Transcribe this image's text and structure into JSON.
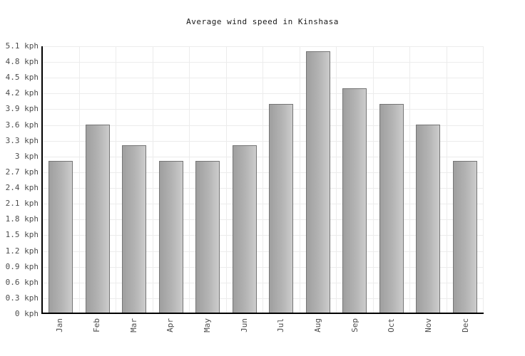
{
  "header": {
    "title": "Average wind speed in Kinshasa"
  },
  "chart_data": {
    "type": "bar",
    "title": "Average wind speed in Kinshasa",
    "categories": [
      "Jan",
      "Feb",
      "Mar",
      "Apr",
      "May",
      "Jun",
      "Jul",
      "Aug",
      "Sep",
      "Oct",
      "Nov",
      "Dec"
    ],
    "values": [
      2.9,
      3.6,
      3.2,
      2.9,
      2.9,
      3.2,
      4.0,
      5.0,
      4.3,
      4.0,
      3.6,
      2.9
    ],
    "unit": "kph",
    "xlabel": "",
    "ylabel": "",
    "ylim": [
      0,
      5.1
    ],
    "ytick_step": 0.3,
    "ytick_labels_bottom_to_top": [
      "0 kph",
      "0.3 kph",
      "0.6 kph",
      "0.9 kph",
      "1.2 kph",
      "1.5 kph",
      "1.8 kph",
      "2.1 kph",
      "2.4 kph",
      "2.7 kph",
      "3 kph",
      "3.3 kph",
      "3.6 kph",
      "3.9 kph",
      "4.2 kph",
      "4.5 kph",
      "4.8 kph",
      "5.1 kph"
    ],
    "grid": true,
    "legend": false
  },
  "colors": {
    "background": "#ffffff",
    "bar_gradient_start": "#9f9f9f",
    "bar_gradient_end": "#cccccc",
    "bar_border": "#757575",
    "grid_line": "#ececec",
    "axis_line": "#000000",
    "tick_label": "#4d4d4d",
    "title": "#1a1a1a"
  }
}
